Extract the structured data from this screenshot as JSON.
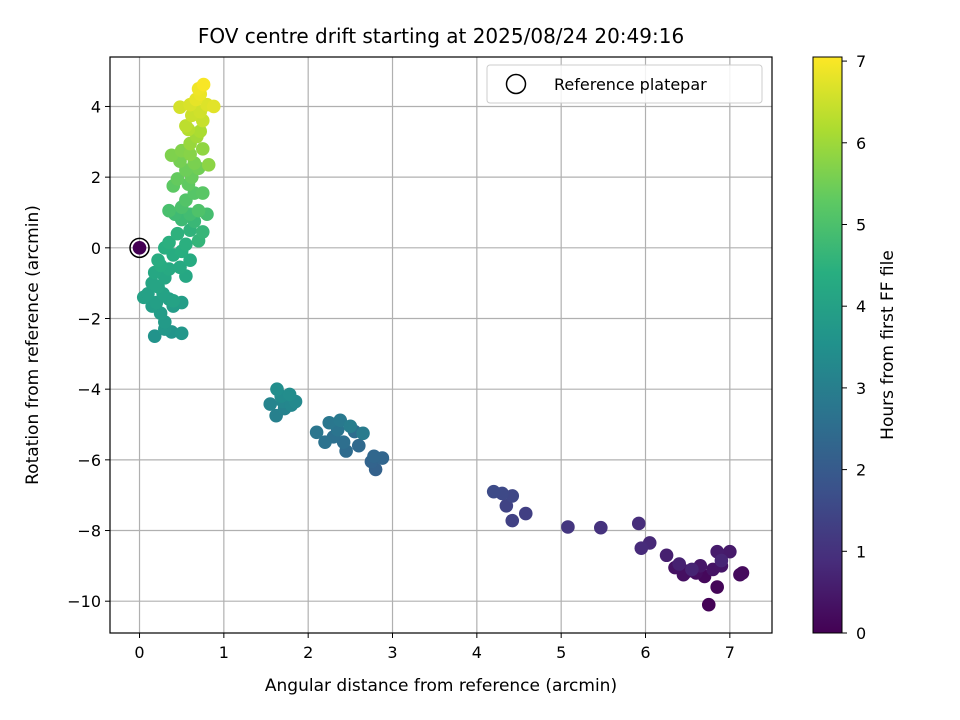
{
  "chart_data": {
    "type": "scatter",
    "title": "FOV centre drift starting at 2025/08/24 20:49:16",
    "xlabel": "Angular distance from reference (arcmin)",
    "ylabel": "Rotation from reference (arcmin)",
    "colorbar_label": "Hours from first FF file",
    "xlim": [
      -0.35,
      7.5
    ],
    "ylim": [
      -10.9,
      5.4
    ],
    "clim": [
      0,
      7.05
    ],
    "xticks": [
      0,
      1,
      2,
      3,
      4,
      5,
      6,
      7
    ],
    "yticks": [
      4,
      2,
      0,
      -2,
      -4,
      -6,
      -8,
      -10
    ],
    "cticks": [
      0,
      1,
      2,
      3,
      4,
      5,
      6,
      7
    ],
    "grid": true,
    "colormap": "viridis",
    "legend": {
      "position": "top-right",
      "label": "Reference platepar"
    },
    "reference_point": {
      "x": 0,
      "y": 0
    },
    "points": [
      [
        0,
        0,
        0
      ],
      [
        6.75,
        -10.1,
        0.05
      ],
      [
        6.85,
        -9.6,
        0.1
      ],
      [
        6.7,
        -9.3,
        0.15
      ],
      [
        7.15,
        -9.2,
        0.18
      ],
      [
        7.12,
        -9.25,
        0.2
      ],
      [
        6.6,
        -9.2,
        0.25
      ],
      [
        6.5,
        -9.15,
        0.28
      ],
      [
        6.45,
        -9.25,
        0.3
      ],
      [
        6.35,
        -9.05,
        0.35
      ],
      [
        6.8,
        -9.1,
        0.38
      ],
      [
        6.9,
        -9.0,
        0.4
      ],
      [
        6.65,
        -9.0,
        0.45
      ],
      [
        7.0,
        -8.6,
        0.5
      ],
      [
        6.85,
        -8.6,
        0.55
      ],
      [
        6.25,
        -8.7,
        0.6
      ],
      [
        6.4,
        -8.95,
        0.65
      ],
      [
        6.55,
        -9.1,
        0.7
      ],
      [
        6.9,
        -8.85,
        0.75
      ],
      [
        6.05,
        -8.35,
        0.8
      ],
      [
        5.95,
        -8.5,
        0.85
      ],
      [
        5.92,
        -7.8,
        0.9
      ],
      [
        5.47,
        -7.92,
        1.0
      ],
      [
        5.08,
        -7.9,
        1.1
      ],
      [
        4.58,
        -7.52,
        1.3
      ],
      [
        4.42,
        -7.72,
        1.35
      ],
      [
        4.35,
        -7.3,
        1.4
      ],
      [
        4.42,
        -7.02,
        1.5
      ],
      [
        4.3,
        -6.95,
        1.55
      ],
      [
        4.2,
        -6.9,
        1.6
      ],
      [
        2.8,
        -6.27,
        2.2
      ],
      [
        2.75,
        -6.05,
        2.25
      ],
      [
        2.88,
        -5.95,
        2.3
      ],
      [
        2.78,
        -5.9,
        2.35
      ],
      [
        2.6,
        -5.6,
        2.4
      ],
      [
        2.45,
        -5.75,
        2.45
      ],
      [
        2.55,
        -5.2,
        2.5
      ],
      [
        2.42,
        -5.5,
        2.55
      ],
      [
        2.3,
        -5.35,
        2.6
      ],
      [
        2.2,
        -5.5,
        2.65
      ],
      [
        2.35,
        -5.15,
        2.7
      ],
      [
        2.1,
        -5.22,
        2.75
      ],
      [
        2.25,
        -4.95,
        2.8
      ],
      [
        2.38,
        -4.88,
        2.85
      ],
      [
        2.65,
        -5.25,
        2.9
      ],
      [
        2.5,
        -5.05,
        2.95
      ],
      [
        1.62,
        -4.75,
        3.05
      ],
      [
        1.72,
        -4.55,
        3.1
      ],
      [
        1.55,
        -4.42,
        3.15
      ],
      [
        1.7,
        -4.35,
        3.2
      ],
      [
        1.8,
        -4.45,
        3.25
      ],
      [
        1.85,
        -4.35,
        3.3
      ],
      [
        1.68,
        -4.2,
        3.35
      ],
      [
        1.78,
        -4.15,
        3.4
      ],
      [
        1.63,
        -4.0,
        3.45
      ],
      [
        0.18,
        -2.5,
        3.6
      ],
      [
        0.38,
        -2.38,
        3.65
      ],
      [
        0.5,
        -2.42,
        3.7
      ],
      [
        0.3,
        -2.3,
        3.75
      ],
      [
        0.3,
        -2.1,
        3.8
      ],
      [
        0.25,
        -1.85,
        3.85
      ],
      [
        0.4,
        -1.65,
        3.85
      ],
      [
        0.5,
        -1.55,
        3.9
      ],
      [
        0.15,
        -1.65,
        3.9
      ],
      [
        0.2,
        -1.55,
        3.95
      ],
      [
        0.35,
        -1.45,
        3.95
      ],
      [
        0.05,
        -1.4,
        4.0
      ],
      [
        0.1,
        -1.3,
        4.0
      ],
      [
        0.28,
        -1.3,
        4.05
      ],
      [
        0.4,
        -1.5,
        4.05
      ],
      [
        0.22,
        -1.1,
        4.1
      ],
      [
        0.15,
        -1.0,
        4.1
      ],
      [
        0.3,
        -0.85,
        4.15
      ],
      [
        0.55,
        -0.8,
        4.2
      ],
      [
        0.18,
        -0.7,
        4.2
      ],
      [
        0.35,
        -0.6,
        4.25
      ],
      [
        0.48,
        -0.55,
        4.25
      ],
      [
        0.25,
        -0.5,
        4.3
      ],
      [
        0.6,
        -0.35,
        4.3
      ],
      [
        0.22,
        -0.35,
        4.35
      ],
      [
        0.4,
        -0.2,
        4.35
      ],
      [
        0.5,
        -0.1,
        4.4
      ],
      [
        0.3,
        0.0,
        4.4
      ],
      [
        0.55,
        0.1,
        4.45
      ],
      [
        0.35,
        0.15,
        4.45
      ],
      [
        0.45,
        0.4,
        4.5
      ],
      [
        0.6,
        0.5,
        4.55
      ],
      [
        0.7,
        0.2,
        4.6
      ],
      [
        0.75,
        0.45,
        4.65
      ],
      [
        0.65,
        0.75,
        4.7
      ],
      [
        0.5,
        0.8,
        4.75
      ],
      [
        0.42,
        0.95,
        4.8
      ],
      [
        0.6,
        0.95,
        4.85
      ],
      [
        0.8,
        0.95,
        4.9
      ],
      [
        0.35,
        1.05,
        4.95
      ],
      [
        0.5,
        1.15,
        5.0
      ],
      [
        0.7,
        1.05,
        5.05
      ],
      [
        0.55,
        1.35,
        5.1
      ],
      [
        0.65,
        1.55,
        5.15
      ],
      [
        0.75,
        1.55,
        5.2
      ],
      [
        0.4,
        1.75,
        5.25
      ],
      [
        0.58,
        1.8,
        5.3
      ],
      [
        0.45,
        1.95,
        5.35
      ],
      [
        0.62,
        2.0,
        5.4
      ],
      [
        0.55,
        2.2,
        5.45
      ],
      [
        0.7,
        2.25,
        5.5
      ],
      [
        0.48,
        2.45,
        5.55
      ],
      [
        0.65,
        2.4,
        5.6
      ],
      [
        0.38,
        2.62,
        5.65
      ],
      [
        0.5,
        2.75,
        5.7
      ],
      [
        0.6,
        2.65,
        5.75
      ],
      [
        0.82,
        2.35,
        5.8
      ],
      [
        0.75,
        2.8,
        5.85
      ],
      [
        0.6,
        2.95,
        5.95
      ],
      [
        0.68,
        3.15,
        6.05
      ],
      [
        0.72,
        3.3,
        6.15
      ],
      [
        0.58,
        3.35,
        6.25
      ],
      [
        0.55,
        3.45,
        6.35
      ],
      [
        0.75,
        3.6,
        6.45
      ],
      [
        0.62,
        3.75,
        6.5
      ],
      [
        0.72,
        3.85,
        6.55
      ],
      [
        0.48,
        3.98,
        6.6
      ],
      [
        0.6,
        4.05,
        6.65
      ],
      [
        0.8,
        4.05,
        6.7
      ],
      [
        0.88,
        4.0,
        6.75
      ],
      [
        0.67,
        4.2,
        6.8
      ],
      [
        0.72,
        4.35,
        6.85
      ],
      [
        0.7,
        4.5,
        6.9
      ],
      [
        0.76,
        4.62,
        7.0
      ]
    ]
  }
}
